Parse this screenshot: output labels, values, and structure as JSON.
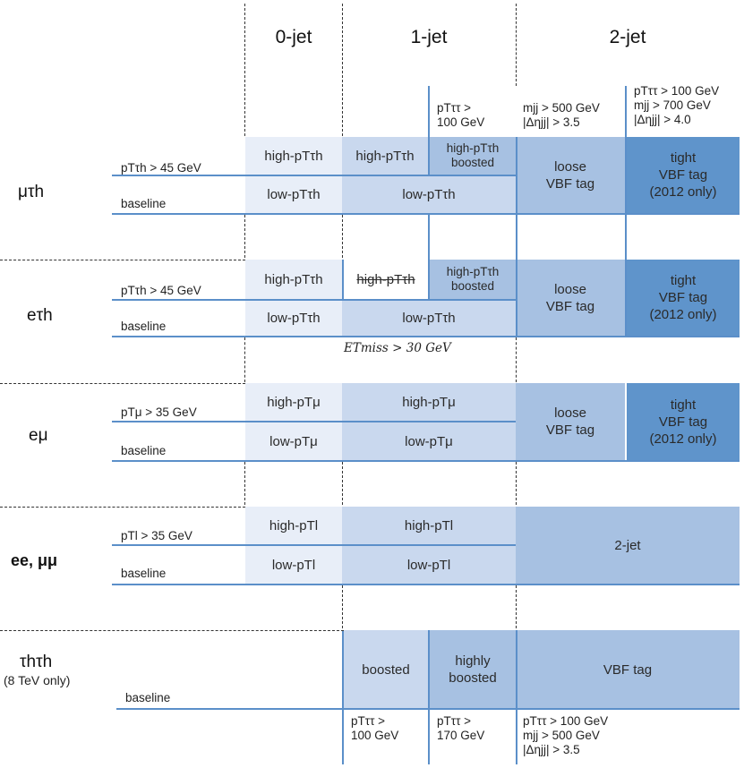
{
  "headers": {
    "jet0": "0-jet",
    "jet1": "1-jet",
    "jet2": "2-jet"
  },
  "top_cuts": {
    "boosted_cut": "pTττ >\n100 GeV",
    "loose_vbf_cut": "mjj > 500 GeV\n|Δηjj| > 3.5",
    "tight_vbf_cut": "pTττ > 100 GeV\nmjj > 700 GeV\n|Δηjj| > 4.0"
  },
  "channels": {
    "mutau": {
      "name": "μτh",
      "threshold": "pTτh > 45 GeV",
      "baseline": "baseline",
      "cells": {
        "jet0_high": "high-pTτh",
        "jet1_high": "high-pTτh",
        "jet1_boosted": "high-pTτh\nboosted",
        "jet0_low": "low-pTτh",
        "jet1_low": "low-pTτh",
        "loose": "loose\nVBF tag",
        "tight": "tight\nVBF tag\n(2012 only)"
      }
    },
    "etau": {
      "name": "eτh",
      "threshold": "pTτh > 45 GeV",
      "baseline": "baseline",
      "met_cut": "ETmiss > 30 GeV",
      "cells": {
        "jet0_high": "high-pTτh",
        "jet1_high_struck": "high-pTτh",
        "jet1_boosted": "high-pTτh\nboosted",
        "jet0_low": "low-pTτh",
        "jet1_low": "low-pTτh",
        "loose": "loose\nVBF tag",
        "tight": "tight\nVBF tag\n(2012 only)"
      }
    },
    "emu": {
      "name": "eμ",
      "threshold": "pTμ > 35 GeV",
      "baseline": "baseline",
      "cells": {
        "jet0_high": "high-pTμ",
        "jet1_high": "high-pTμ",
        "jet0_low": "low-pTμ",
        "jet1_low": "low-pTμ",
        "loose": "loose\nVBF tag",
        "tight": "tight\nVBF tag\n(2012 only)"
      }
    },
    "ll": {
      "name": "ee, μμ",
      "threshold": "pTl > 35 GeV",
      "baseline": "baseline",
      "cells": {
        "jet0_high": "high-pTl",
        "jet1_high": "high-pTl",
        "jet0_low": "low-pTl",
        "jet1_low": "low-pTl",
        "jet2": "2-jet"
      }
    },
    "tautau": {
      "name": "τhτh",
      "note": "(8 TeV only)",
      "baseline": "baseline",
      "cells": {
        "boosted": "boosted",
        "highly_boosted": "highly\nboosted",
        "vbf": "VBF tag"
      },
      "bottom_cuts": {
        "boosted": "pTττ >\n100 GeV",
        "highly_boosted": "pTττ >\n170 GeV",
        "vbf": "pTττ > 100 GeV\nmjj > 500 GeV\n|Δηjj| > 3.5"
      }
    }
  },
  "colors": {
    "lightest": "#e8eef8",
    "light": "#c9d8ee",
    "medium": "#a7c1e2",
    "dark": "#5f94cb",
    "line": "#5b8fc9"
  }
}
